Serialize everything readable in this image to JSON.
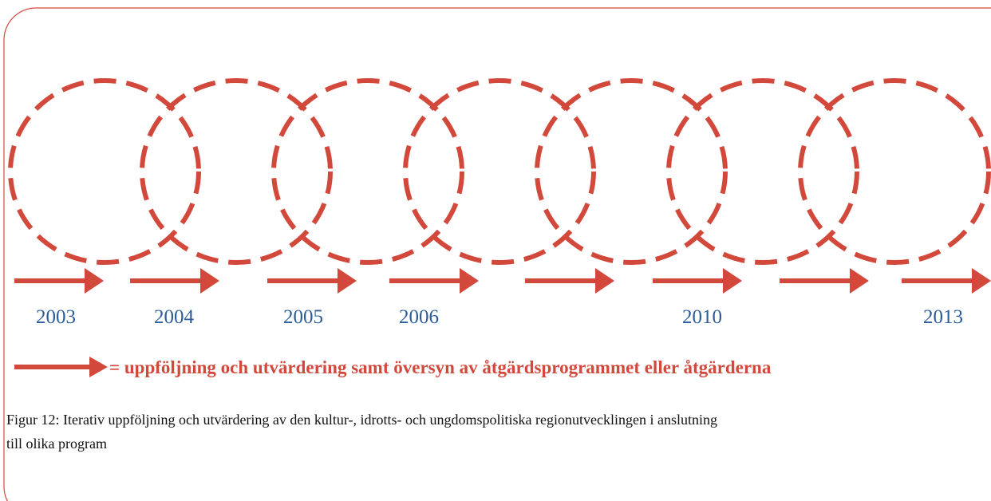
{
  "diagram": {
    "years": [
      "2003",
      "2004",
      "2005",
      "2006",
      null,
      "2010",
      null,
      "2013"
    ],
    "legend": "= uppföljning och utvärdering samt översyn av åtgärdsprogrammet eller åtgärderna",
    "caption": [
      "Figur 12: Iterativ uppföljning och utvärdering av den kultur-, idrotts- och ungdomspolitiska regionutvecklingen i anslutning",
      "till olika program"
    ]
  }
}
